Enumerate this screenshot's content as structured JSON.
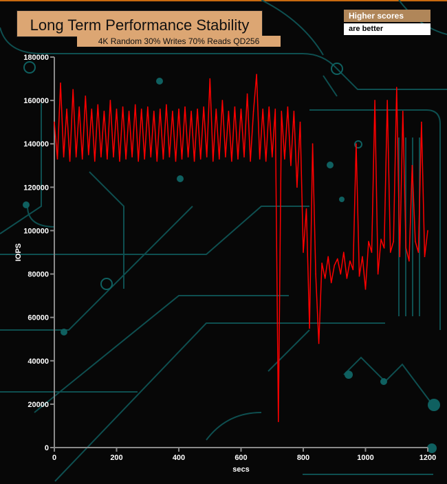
{
  "chart_data": {
    "type": "line",
    "title": "Long Term Performance Stability",
    "subtitle": "4K Random 30% Writes 70% Reads QD256",
    "xlabel": "secs",
    "ylabel": "IOPS",
    "xlim": [
      0,
      1200
    ],
    "ylim": [
      0,
      180000
    ],
    "xticks": [
      "0",
      "200",
      "400",
      "600",
      "800",
      "1000",
      "1200"
    ],
    "yticks": [
      "0",
      "20000",
      "40000",
      "60000",
      "80000",
      "100000",
      "120000",
      "140000",
      "160000",
      "180000"
    ],
    "grid": false,
    "series_color": "#ff0000",
    "x": [
      0,
      10,
      20,
      30,
      40,
      50,
      60,
      70,
      80,
      90,
      100,
      110,
      120,
      130,
      140,
      150,
      160,
      170,
      180,
      190,
      200,
      210,
      220,
      230,
      240,
      250,
      260,
      270,
      280,
      290,
      300,
      310,
      320,
      330,
      340,
      350,
      360,
      370,
      380,
      390,
      400,
      410,
      420,
      430,
      440,
      450,
      460,
      470,
      480,
      490,
      500,
      510,
      520,
      530,
      540,
      550,
      560,
      570,
      580,
      590,
      600,
      610,
      620,
      630,
      640,
      650,
      660,
      670,
      680,
      690,
      700,
      710,
      720,
      730,
      740,
      750,
      760,
      770,
      780,
      790,
      800,
      810,
      820,
      830,
      840,
      850,
      860,
      870,
      880,
      890,
      900,
      910,
      920,
      930,
      940,
      950,
      960,
      970,
      980,
      990,
      1000,
      1010,
      1020,
      1030,
      1040,
      1050,
      1060,
      1070,
      1080,
      1090,
      1100,
      1110,
      1120,
      1130,
      1140,
      1150,
      1160,
      1170,
      1180,
      1190,
      1200
    ],
    "y": [
      150000,
      133000,
      168000,
      134000,
      156000,
      132000,
      165000,
      134000,
      157000,
      133000,
      162000,
      135000,
      156000,
      132000,
      158000,
      134000,
      155000,
      133000,
      160000,
      134000,
      156000,
      132000,
      157000,
      133000,
      155000,
      134000,
      158000,
      132000,
      156000,
      133000,
      157000,
      134000,
      155000,
      132000,
      156000,
      133000,
      158000,
      134000,
      155000,
      132000,
      156000,
      133000,
      157000,
      134000,
      155000,
      132000,
      156000,
      133000,
      157000,
      134000,
      170000,
      132000,
      156000,
      133000,
      160000,
      134000,
      155000,
      132000,
      157000,
      133000,
      156000,
      134000,
      163000,
      132000,
      155000,
      172000,
      133000,
      156000,
      132000,
      157000,
      134000,
      156000,
      12000,
      155000,
      133000,
      157000,
      130000,
      155000,
      120000,
      150000,
      90000,
      110000,
      55000,
      140000,
      80000,
      48000,
      85000,
      78000,
      88000,
      76000,
      84000,
      87000,
      80000,
      90000,
      78000,
      86000,
      82000,
      140000,
      79000,
      88000,
      73000,
      95000,
      90000,
      160000,
      80000,
      96000,
      92000,
      160000,
      90000,
      95000,
      166000,
      88000,
      155000,
      92000,
      86000,
      130000,
      95000,
      90000,
      150000,
      88000,
      100000
    ]
  },
  "legend_note": {
    "line1": "Higher scores",
    "line2": "are better"
  },
  "colors": {
    "title_box": "#dca673",
    "legend_top": "#b08659",
    "background": "#070707",
    "circuit": "#0f5a5a"
  }
}
